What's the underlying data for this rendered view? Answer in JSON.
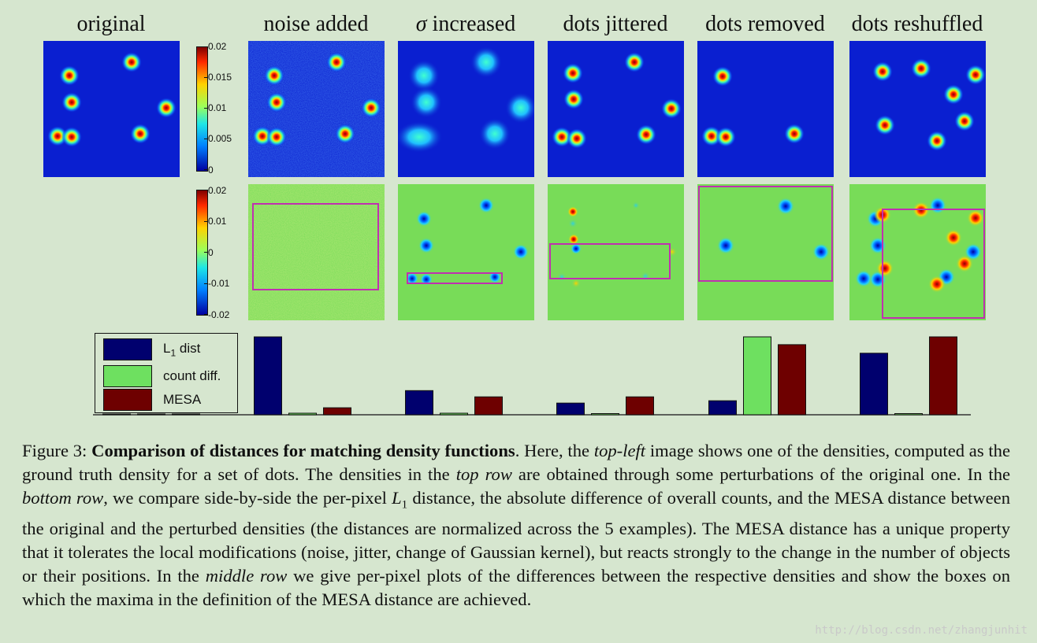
{
  "columns": [
    {
      "title": "original",
      "italic_prefix": ""
    },
    {
      "title": " noise added",
      "italic_prefix": ""
    },
    {
      "title": " increased",
      "italic_prefix": "σ"
    },
    {
      "title": "dots jittered",
      "italic_prefix": ""
    },
    {
      "title": "dots removed",
      "italic_prefix": ""
    },
    {
      "title": "dots reshuffled",
      "italic_prefix": ""
    }
  ],
  "colorbar_top": {
    "ticks": [
      "0.02",
      "0.015",
      "0.01",
      "0.005",
      "0"
    ]
  },
  "colorbar_mid": {
    "ticks": [
      "0.02",
      "0.01",
      "0",
      "-0.01",
      "-0.02"
    ]
  },
  "colors": {
    "background": "#d6e6cf",
    "density_bg": "#0a1fd0",
    "diff_bg": "#78dc58",
    "box": "#c030b0",
    "l1": "#00006e",
    "count": "#6ee060",
    "mesa": "#6e0000"
  },
  "chart_data": {
    "type": "bar",
    "categories": [
      "original",
      "noise added",
      "σ increased",
      "dots jittered",
      "dots removed",
      "dots reshuffled"
    ],
    "series": [
      {
        "name": "L1 dist",
        "values": [
          0.0,
          1.0,
          0.31,
          0.15,
          0.18,
          0.79
        ]
      },
      {
        "name": "count diff.",
        "values": [
          0.0,
          0.02,
          0.02,
          0.01,
          1.0,
          0.01
        ]
      },
      {
        "name": "MESA",
        "values": [
          0.0,
          0.09,
          0.23,
          0.23,
          0.9,
          1.0
        ]
      }
    ],
    "ylim": [
      0,
      1
    ],
    "legend": "top-left"
  },
  "legend": {
    "l1": "L",
    "l1_sub": "1",
    "l1_rest": " dist",
    "count": "count diff.",
    "mesa": "MESA"
  },
  "caption": {
    "fig": "Figure 3:",
    "bold_title": "Comparison of distances for matching density functions",
    "s1": ". Here, the ",
    "i1": "top-left",
    "s2": " image shows one of the densities, computed as the ground truth density for a set of dots. The densities in the ",
    "i2": "top row",
    "s3": " are obtained through some perturbations of the original one. In the ",
    "i3": "bottom row",
    "s4": ", we compare side-by-side the per-pixel ",
    "l1": "L",
    "l1_sub": "1",
    "s5": " distance, the absolute difference of overall counts, and the MESA distance between the original and the perturbed densities (the distances are normalized across the 5 examples). The MESA distance has a unique property that it tolerates the local modifications (noise, jitter, change of Gaussian kernel), but reacts strongly to the change in the number of objects or their positions. In the ",
    "i4": "middle row",
    "s6": " we give per-pixel plots of the differences between the respective densities and show the boxes on which the maxima in the definition of the MESA distance are achieved."
  },
  "watermark": "http://blog.csdn.net/zhangjunhit"
}
